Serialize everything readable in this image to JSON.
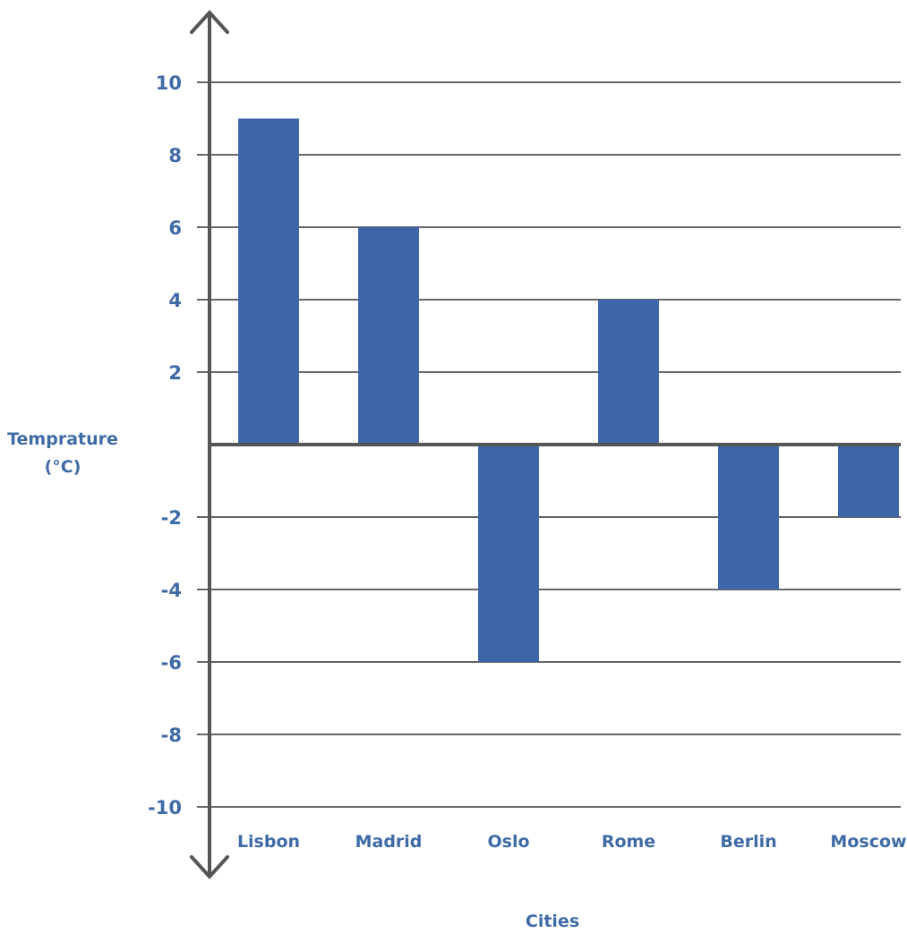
{
  "chart_data": {
    "type": "bar",
    "title": "",
    "xlabel": "Cities",
    "ylabel": "Temprature (°C)",
    "ylabel_lines": [
      "Temprature",
      "(°C)"
    ],
    "categories": [
      "Lisbon",
      "Madrid",
      "Oslo",
      "Rome",
      "Berlin",
      "Moscow"
    ],
    "values": [
      9,
      6,
      -6,
      4,
      -4,
      -2
    ],
    "ylim": [
      -10,
      10
    ],
    "yticks": [
      10,
      8,
      6,
      4,
      2,
      -2,
      -4,
      -6,
      -8,
      -10
    ],
    "grid": true,
    "legend": "none"
  },
  "colors": {
    "bar": "#3d66a8",
    "label": "#3e6aa6",
    "axis": "#555555",
    "grid": "#333333"
  }
}
